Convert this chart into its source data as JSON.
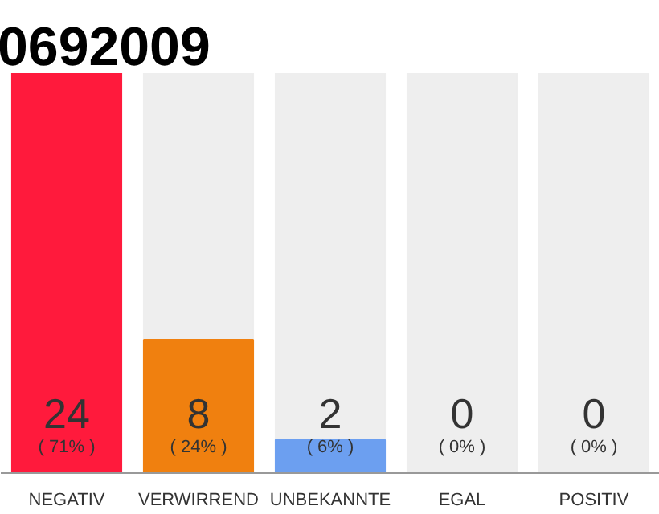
{
  "chart_data": {
    "type": "bar",
    "title": "0692009",
    "categories": [
      "NEGATIV",
      "VERWIRREND",
      "UNBEKANNTE",
      "EGAL",
      "POSITIV"
    ],
    "values": [
      24,
      8,
      2,
      0,
      0
    ],
    "colors": [
      "#ff1a3c",
      "#f0800f",
      "#6c9ff0",
      "#4a90e2",
      "#4a90e2"
    ],
    "data_labels": true,
    "annotations": [
      {
        "text": "( 71% )",
        "x": "NEGATIV",
        "y": 0
      },
      {
        "text": "( 24% )",
        "x": "VERWIRREND",
        "y": 0
      },
      {
        "text": "( 6% )",
        "x": "UNBEKANNTE",
        "y": 0
      },
      {
        "text": "( 0% )",
        "x": "EGAL",
        "y": 0
      },
      {
        "text": "( 0% )",
        "x": "POSITIV",
        "y": 0
      }
    ],
    "grid": false
  }
}
